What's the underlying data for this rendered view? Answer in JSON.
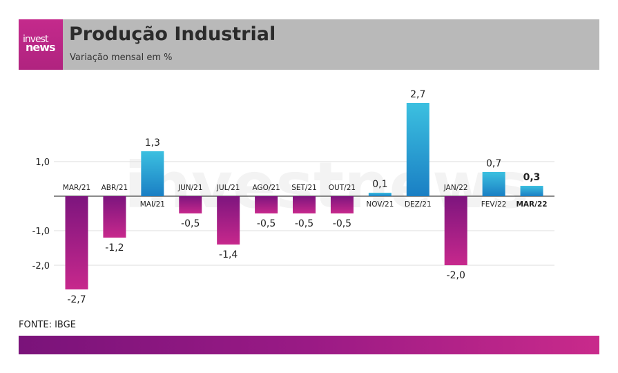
{
  "brand": {
    "logo_top": "invest",
    "logo_bottom": "news"
  },
  "header": {
    "title": "Produção Industrial",
    "subtitle": "Variação mensal em %"
  },
  "footer": {
    "source": "FONTE: IBGE"
  },
  "colors": {
    "negative_top": "#7d157e",
    "negative_bottom": "#c7288c",
    "positive_top": "#3cc0e0",
    "positive_bottom": "#1a7fc4",
    "grid": "#dddddd",
    "axis": "#444444"
  },
  "chart_data": {
    "type": "bar",
    "categories": [
      "MAR/21",
      "ABR/21",
      "MAI/21",
      "JUN/21",
      "JUL/21",
      "AGO/21",
      "SET/21",
      "OUT/21",
      "NOV/21",
      "DEZ/21",
      "JAN/22",
      "FEV/22",
      "MAR/22"
    ],
    "values": [
      -2.7,
      -1.2,
      1.3,
      -0.5,
      -1.4,
      -0.5,
      -0.5,
      -0.5,
      0.1,
      2.7,
      -2.0,
      0.7,
      0.3
    ],
    "value_labels": [
      "-2,7",
      "-1,2",
      "1,3",
      "-0,5",
      "-1,4",
      "-0,5",
      "-0,5",
      "-0,5",
      "0,1",
      "2,7",
      "-2,0",
      "0,7",
      "0,3"
    ],
    "y_ticks": [
      1.0,
      -1.0,
      -2.0
    ],
    "y_tick_labels": [
      "1,0",
      "-1,0",
      "-2,0"
    ],
    "ylim": [
      -2.7,
      2.7
    ],
    "highlight": "MAR/22",
    "grid": true
  }
}
